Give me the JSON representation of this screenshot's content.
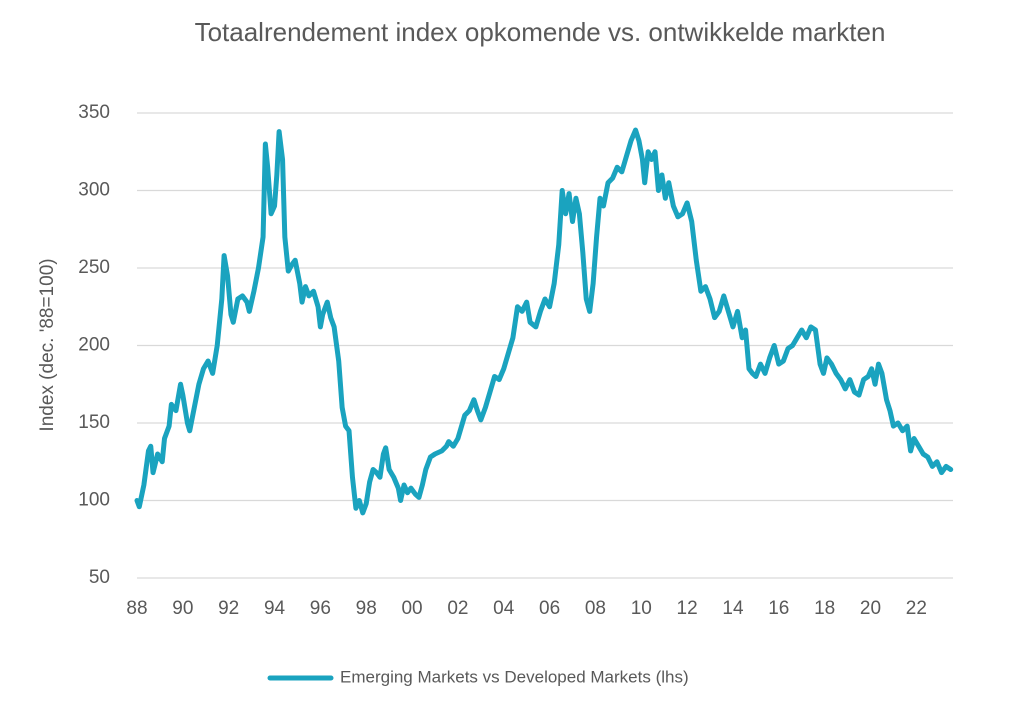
{
  "chart_data": {
    "type": "line",
    "title": "Totaalrendement index opkomende vs. ontwikkelde markten",
    "y_label": "Index (dec. '88=100)",
    "xlim": [
      1988,
      2023.6
    ],
    "ylim": [
      50,
      350
    ],
    "yticks": [
      50,
      100,
      150,
      200,
      250,
      300,
      350
    ],
    "xticks": [
      {
        "value": 1988,
        "label": "88"
      },
      {
        "value": 1990,
        "label": "90"
      },
      {
        "value": 1992,
        "label": "92"
      },
      {
        "value": 1994,
        "label": "94"
      },
      {
        "value": 1996,
        "label": "96"
      },
      {
        "value": 1998,
        "label": "98"
      },
      {
        "value": 2000,
        "label": "00"
      },
      {
        "value": 2002,
        "label": "02"
      },
      {
        "value": 2004,
        "label": "04"
      },
      {
        "value": 2006,
        "label": "06"
      },
      {
        "value": 2008,
        "label": "08"
      },
      {
        "value": 2010,
        "label": "10"
      },
      {
        "value": 2012,
        "label": "12"
      },
      {
        "value": 2014,
        "label": "14"
      },
      {
        "value": 2016,
        "label": "16"
      },
      {
        "value": 2018,
        "label": "18"
      },
      {
        "value": 2020,
        "label": "20"
      },
      {
        "value": 2022,
        "label": "22"
      }
    ],
    "grid": true,
    "legend": "bottom",
    "x": [
      1988.0,
      1988.1,
      1988.3,
      1988.5,
      1988.6,
      1988.7,
      1988.9,
      1989.1,
      1989.2,
      1989.4,
      1989.5,
      1989.7,
      1989.9,
      1990.0,
      1990.2,
      1990.3,
      1990.5,
      1990.7,
      1990.9,
      1991.1,
      1991.3,
      1991.5,
      1991.7,
      1991.8,
      1991.95,
      1992.1,
      1992.2,
      1992.4,
      1992.6,
      1992.8,
      1992.9,
      1993.1,
      1993.3,
      1993.5,
      1993.6,
      1993.7,
      1993.85,
      1994.0,
      1994.1,
      1994.2,
      1994.35,
      1994.45,
      1994.6,
      1994.75,
      1994.9,
      1995.1,
      1995.2,
      1995.35,
      1995.5,
      1995.7,
      1995.9,
      1996.0,
      1996.1,
      1996.3,
      1996.45,
      1996.6,
      1996.8,
      1996.95,
      1997.1,
      1997.25,
      1997.4,
      1997.55,
      1997.7,
      1997.85,
      1998.0,
      1998.15,
      1998.3,
      1998.45,
      1998.6,
      1998.75,
      1998.85,
      1999.0,
      1999.2,
      1999.4,
      1999.5,
      1999.65,
      1999.8,
      1999.95,
      2000.15,
      2000.3,
      2000.45,
      2000.6,
      2000.8,
      2001.0,
      2001.3,
      2001.5,
      2001.6,
      2001.8,
      2002.0,
      2002.3,
      2002.5,
      2002.7,
      2002.85,
      2003.0,
      2003.2,
      2003.4,
      2003.6,
      2003.8,
      2004.0,
      2004.2,
      2004.4,
      2004.6,
      2004.8,
      2005.0,
      2005.15,
      2005.4,
      2005.6,
      2005.8,
      2006.0,
      2006.2,
      2006.4,
      2006.55,
      2006.7,
      2006.85,
      2007.0,
      2007.15,
      2007.3,
      2007.45,
      2007.6,
      2007.75,
      2007.9,
      2008.05,
      2008.2,
      2008.35,
      2008.55,
      2008.75,
      2008.95,
      2009.15,
      2009.35,
      2009.55,
      2009.75,
      2009.9,
      2010.05,
      2010.15,
      2010.3,
      2010.45,
      2010.6,
      2010.75,
      2010.9,
      2011.05,
      2011.2,
      2011.4,
      2011.6,
      2011.8,
      2012.0,
      2012.2,
      2012.4,
      2012.6,
      2012.8,
      2013.0,
      2013.2,
      2013.4,
      2013.6,
      2013.8,
      2014.0,
      2014.2,
      2014.4,
      2014.55,
      2014.7,
      2014.85,
      2015.0,
      2015.2,
      2015.4,
      2015.6,
      2015.8,
      2016.0,
      2016.2,
      2016.4,
      2016.6,
      2016.8,
      2017.0,
      2017.2,
      2017.4,
      2017.6,
      2017.8,
      2017.95,
      2018.1,
      2018.3,
      2018.5,
      2018.7,
      2018.9,
      2019.1,
      2019.3,
      2019.5,
      2019.7,
      2019.9,
      2020.05,
      2020.2,
      2020.35,
      2020.5,
      2020.7,
      2020.85,
      2021.0,
      2021.2,
      2021.4,
      2021.6,
      2021.75,
      2021.9,
      2022.1,
      2022.3,
      2022.5,
      2022.7,
      2022.9,
      2023.1,
      2023.3,
      2023.5
    ],
    "series": [
      {
        "name": "Emerging Markets vs Developed Markets (lhs)",
        "color": "#1aa3bf",
        "values": [
          100,
          96,
          110,
          132,
          135,
          118,
          130,
          125,
          140,
          148,
          162,
          158,
          175,
          168,
          150,
          145,
          160,
          175,
          185,
          190,
          182,
          200,
          230,
          258,
          245,
          220,
          215,
          230,
          232,
          228,
          222,
          235,
          250,
          270,
          330,
          315,
          285,
          290,
          310,
          338,
          320,
          270,
          248,
          252,
          255,
          240,
          228,
          238,
          232,
          235,
          225,
          212,
          220,
          228,
          218,
          212,
          190,
          160,
          148,
          145,
          115,
          95,
          100,
          92,
          98,
          112,
          120,
          118,
          115,
          130,
          134,
          120,
          115,
          108,
          100,
          110,
          105,
          108,
          104,
          102,
          110,
          120,
          128,
          130,
          132,
          135,
          138,
          135,
          140,
          155,
          158,
          165,
          158,
          152,
          160,
          170,
          180,
          178,
          185,
          195,
          205,
          225,
          222,
          228,
          215,
          212,
          222,
          230,
          225,
          240,
          265,
          300,
          285,
          298,
          280,
          295,
          285,
          260,
          230,
          222,
          240,
          270,
          295,
          290,
          305,
          308,
          315,
          312,
          322,
          332,
          339,
          332,
          320,
          305,
          325,
          320,
          325,
          300,
          310,
          295,
          305,
          290,
          283,
          285,
          292,
          280,
          255,
          235,
          238,
          230,
          218,
          222,
          232,
          222,
          212,
          222,
          205,
          210,
          185,
          182,
          180,
          188,
          182,
          192,
          200,
          188,
          190,
          198,
          200,
          205,
          210,
          205,
          212,
          210,
          188,
          182,
          192,
          188,
          182,
          178,
          172,
          178,
          170,
          168,
          178,
          180,
          185,
          175,
          188,
          182,
          165,
          158,
          148,
          150,
          145,
          148,
          132,
          140,
          135,
          130,
          128,
          122,
          125,
          118,
          122,
          120
        ]
      }
    ]
  }
}
